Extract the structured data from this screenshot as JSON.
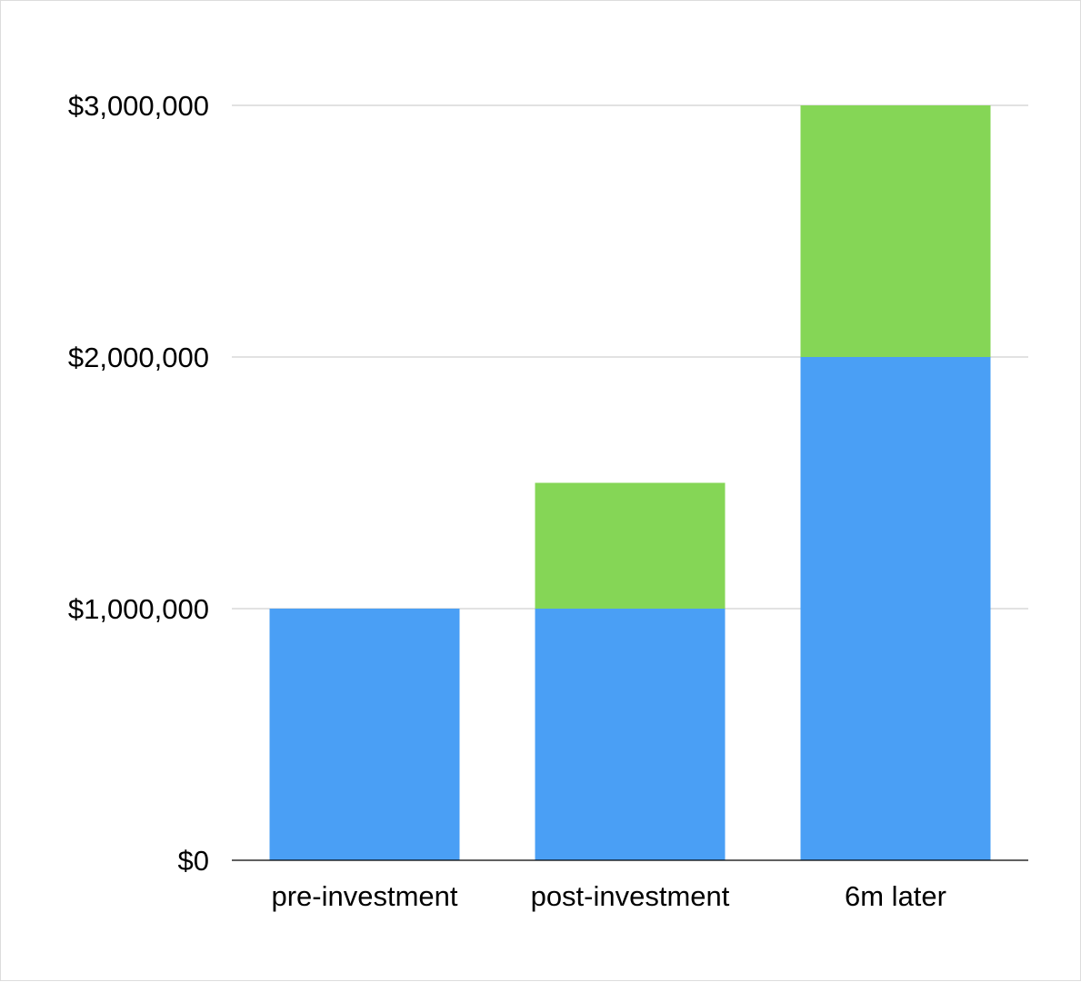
{
  "chart_data": {
    "type": "bar",
    "stacked": true,
    "categories": [
      "pre-investment",
      "post-investment",
      "6m later"
    ],
    "series": [
      {
        "color": "#4a9ff5",
        "values": [
          1000000,
          1000000,
          2000000
        ]
      },
      {
        "color": "#85d656",
        "values": [
          0,
          500000,
          1000000
        ]
      }
    ],
    "ylim": [
      0,
      3000000
    ],
    "yticks": [
      0,
      1000000,
      2000000,
      3000000
    ],
    "ytick_labels": [
      "$0",
      "$1,000,000",
      "$2,000,000",
      "$3,000,000"
    ],
    "grid": true,
    "legend": "none",
    "title": "",
    "xlabel": "",
    "ylabel": ""
  }
}
